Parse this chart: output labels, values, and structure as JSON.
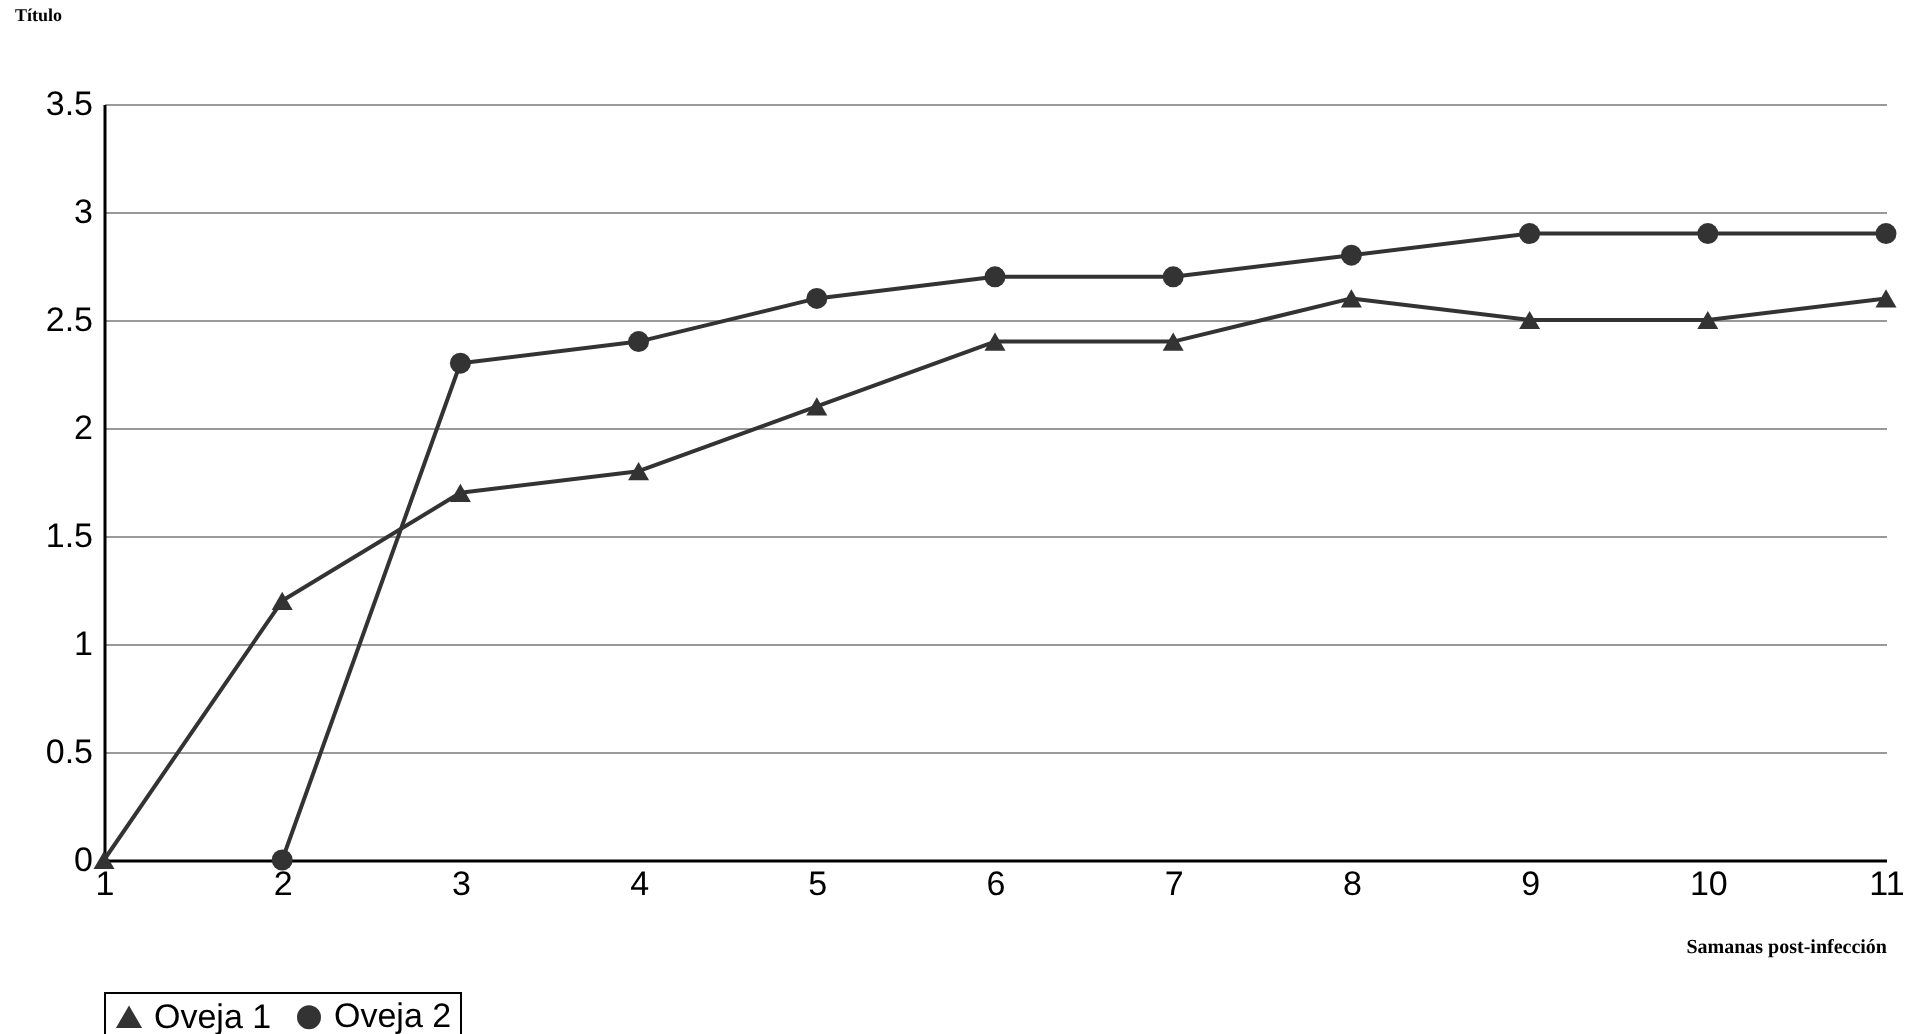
{
  "chart_data": {
    "type": "line",
    "xlabel": "Samanas post-infección",
    "ylabel": "Título",
    "x": [
      1,
      2,
      3,
      4,
      5,
      6,
      7,
      8,
      9,
      10,
      11
    ],
    "xlim": [
      1,
      11
    ],
    "xticks": [
      1,
      2,
      3,
      4,
      5,
      6,
      7,
      8,
      9,
      10,
      11
    ],
    "ylim": [
      0,
      3.5
    ],
    "yticks": [
      0,
      0.5,
      1,
      1.5,
      2,
      2.5,
      3,
      3.5
    ],
    "grid": "y",
    "legend": "bottom",
    "line_style": "solid",
    "series": [
      {
        "name": "Oveja 1",
        "color": "#333333",
        "marker": "triangle",
        "values": [
          0,
          1.2,
          1.7,
          1.8,
          2.1,
          2.4,
          2.4,
          2.6,
          2.5,
          2.5,
          2.6
        ]
      },
      {
        "name": "Oveja 2",
        "color": "#333333",
        "marker": "circle",
        "values": [
          null,
          0,
          2.3,
          2.4,
          2.6,
          2.7,
          2.7,
          2.8,
          2.9,
          2.9,
          2.9
        ]
      }
    ]
  }
}
